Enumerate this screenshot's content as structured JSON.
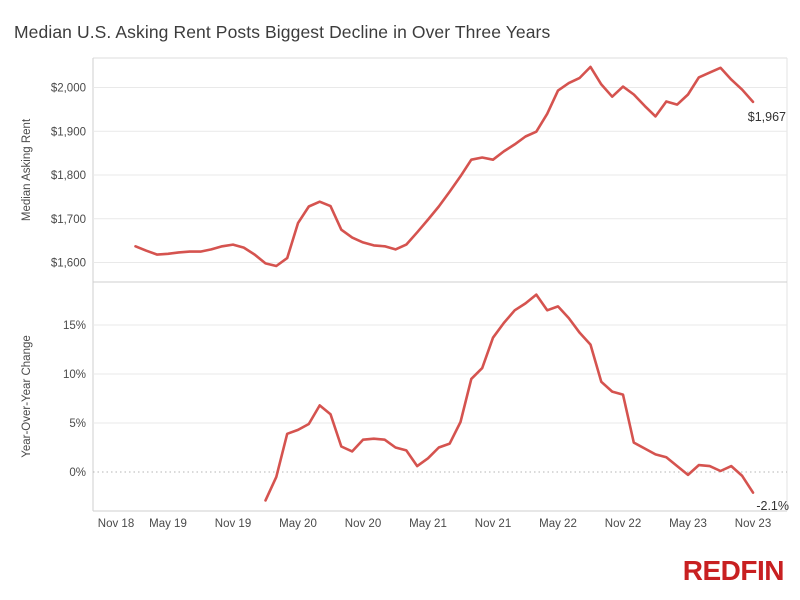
{
  "title": "Median U.S. Asking Rent Posts Biggest Decline in Over Three Years",
  "logo_text": "REDFIN",
  "colors": {
    "line": "#d5534f",
    "logo_red": "#c82021",
    "grid": "#e9e9e9",
    "zero_dotted": "#b5b5b5",
    "axis_border": "#cfcfcf",
    "tick_text": "#4a4a4a",
    "annotation_text": "#333333",
    "title_text": "#3c3c3c"
  },
  "x_axis": {
    "tick_labels": [
      "Nov 18",
      "May 19",
      "Nov 19",
      "May 20",
      "Nov 20",
      "May 21",
      "Nov 21",
      "May 22",
      "Nov 22",
      "May 23",
      "Nov 23"
    ],
    "tick_month_index": [
      0,
      6,
      12,
      18,
      24,
      30,
      36,
      42,
      48,
      54,
      60
    ]
  },
  "chart_data": [
    {
      "type": "line",
      "name": "median-asking-rent",
      "ylabel": "Median Asking Rent",
      "ylim": [
        1557,
        2069
      ],
      "grid": true,
      "yticks": [
        {
          "label": "$2,000",
          "value": 2000
        },
        {
          "label": "$1,900",
          "value": 1900
        },
        {
          "label": "$1,800",
          "value": 1800
        },
        {
          "label": "$1,700",
          "value": 1700
        },
        {
          "label": "$1,600",
          "value": 1600
        }
      ],
      "start_month_index": 3,
      "values": [
        1637,
        1627,
        1618,
        1620,
        1623,
        1625,
        1625,
        1630,
        1637,
        1641,
        1634,
        1618,
        1598,
        1592,
        1610,
        1690,
        1728,
        1739,
        1729,
        1675,
        1657,
        1646,
        1639,
        1637,
        1630,
        1641,
        1669,
        1698,
        1728,
        1762,
        1797,
        1835,
        1840,
        1835,
        1854,
        1870,
        1888,
        1899,
        1940,
        1993,
        2010,
        2022,
        2047,
        2007,
        1979,
        2002,
        1984,
        1958,
        1934,
        1968,
        1961,
        1984,
        2023,
        2034,
        2045,
        2018,
        1995,
        1967
      ],
      "end_annotation": "$1,967"
    },
    {
      "type": "line",
      "name": "year-over-year-change",
      "ylabel": "Year-Over-Year Change",
      "ylim": [
        -4,
        19.4
      ],
      "grid": true,
      "yticks": [
        {
          "label": "15%",
          "value": 15
        },
        {
          "label": "10%",
          "value": 10
        },
        {
          "label": "5%",
          "value": 5
        },
        {
          "label": "0%",
          "value": 0,
          "dotted": true
        }
      ],
      "start_month_index": 15,
      "values": [
        -2.9,
        -0.5,
        3.9,
        4.3,
        4.9,
        6.8,
        5.9,
        2.6,
        2.1,
        3.3,
        3.4,
        3.3,
        2.5,
        2.2,
        0.6,
        1.4,
        2.5,
        2.9,
        5.1,
        9.5,
        10.6,
        13.7,
        15.2,
        16.5,
        17.2,
        18.1,
        16.5,
        16.9,
        15.7,
        14.2,
        13.0,
        9.2,
        8.2,
        7.9,
        3.0,
        2.4,
        1.8,
        1.5,
        0.6,
        -0.3,
        0.7,
        0.6,
        0.1,
        0.6,
        -0.4,
        -2.1
      ],
      "end_annotation": "-2.1%"
    }
  ]
}
